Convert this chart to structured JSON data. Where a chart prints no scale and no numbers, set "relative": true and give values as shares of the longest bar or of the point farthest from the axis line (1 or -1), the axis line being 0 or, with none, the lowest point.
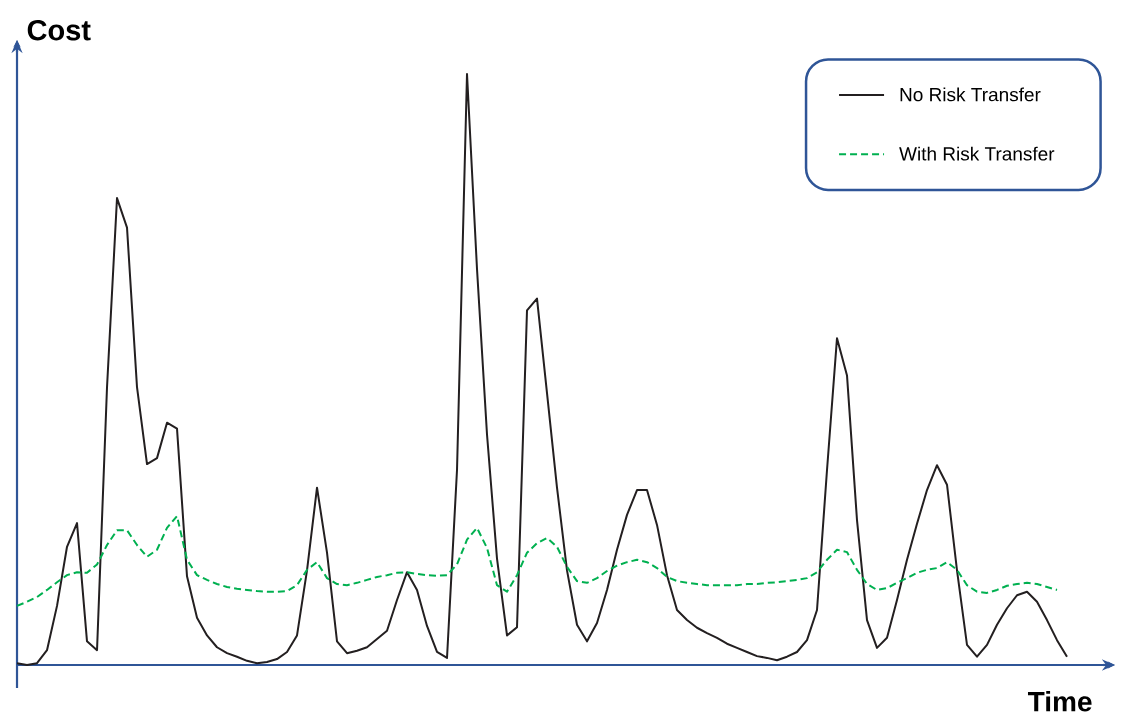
{
  "chart_data": {
    "type": "line",
    "relative": true,
    "xlabel": "Time",
    "ylabel": "Cost",
    "legend": "top right",
    "categories": [
      null,
      null,
      null,
      null,
      null,
      null,
      null,
      null,
      null,
      null,
      null,
      null,
      null,
      null,
      null,
      null,
      null,
      null,
      null,
      null,
      null,
      null,
      null,
      null,
      null,
      null,
      null,
      null,
      null,
      null,
      null,
      null,
      null,
      null,
      null,
      null,
      null,
      null,
      null,
      null,
      null,
      null,
      null,
      null,
      null,
      null,
      null,
      null,
      null,
      null,
      null,
      null,
      null,
      null,
      null,
      null,
      null,
      null,
      null,
      null,
      null,
      null,
      null,
      null,
      null,
      null,
      null,
      null,
      null,
      null,
      null,
      null,
      null,
      null,
      null,
      null,
      null,
      null,
      null,
      null,
      null,
      null,
      null,
      null,
      null,
      null,
      null,
      null,
      null,
      null,
      null,
      null,
      null,
      null,
      null,
      null,
      null,
      null,
      null,
      null,
      null,
      null,
      null,
      null,
      null,
      null
    ],
    "series": [
      {
        "name": "No Risk Transfer",
        "color": "#231f20",
        "line_style": "solid",
        "values": [
          0.003,
          0,
          0.003,
          0.025,
          0.1,
          0.2,
          0.24,
          0.04,
          0.025,
          0.47,
          0.79,
          0.74,
          0.47,
          0.34,
          0.35,
          0.41,
          0.4,
          0.15,
          0.08,
          0.05,
          0.03,
          0.02,
          0.014,
          0.007,
          0.003,
          0.005,
          0.01,
          0.022,
          0.05,
          0.16,
          0.3,
          0.19,
          0.04,
          0.02,
          0.024,
          0.03,
          0.044,
          0.058,
          0.11,
          0.157,
          0.127,
          0.066,
          0.022,
          0.012,
          0.33,
          1,
          0.67,
          0.39,
          0.18,
          0.05,
          0.064,
          0.6,
          0.62,
          0.46,
          0.3,
          0.16,
          0.068,
          0.04,
          0.071,
          0.127,
          0.195,
          0.254,
          0.296,
          0.296,
          0.237,
          0.152,
          0.093,
          0.076,
          0.063,
          0.054,
          0.046,
          0.036,
          0.029,
          0.022,
          0.015,
          0.012,
          0.008,
          0.014,
          0.022,
          0.042,
          0.093,
          0.33,
          0.553,
          0.49,
          0.245,
          0.076,
          0.029,
          0.046,
          0.11,
          0.178,
          0.239,
          0.296,
          0.338,
          0.305,
          0.16,
          0.034,
          0.014,
          0.034,
          0.068,
          0.096,
          0.118,
          0.124,
          0.107,
          0.076,
          0.042,
          0.014
        ]
      },
      {
        "name": "With Risk Transfer",
        "color": "#00b050",
        "line_style": "dashed",
        "values": [
          0.1,
          0.107,
          0.115,
          0.127,
          0.14,
          0.152,
          0.157,
          0.156,
          0.17,
          0.203,
          0.228,
          0.228,
          0.203,
          0.183,
          0.195,
          0.232,
          0.252,
          0.178,
          0.152,
          0.144,
          0.137,
          0.132,
          0.129,
          0.127,
          0.125,
          0.124,
          0.124,
          0.125,
          0.135,
          0.161,
          0.174,
          0.147,
          0.137,
          0.135,
          0.139,
          0.144,
          0.149,
          0.152,
          0.156,
          0.157,
          0.154,
          0.152,
          0.151,
          0.152,
          0.17,
          0.212,
          0.232,
          0.198,
          0.135,
          0.124,
          0.152,
          0.19,
          0.206,
          0.215,
          0.2,
          0.166,
          0.142,
          0.139,
          0.147,
          0.159,
          0.168,
          0.174,
          0.178,
          0.174,
          0.164,
          0.149,
          0.142,
          0.139,
          0.137,
          0.135,
          0.135,
          0.135,
          0.135,
          0.137,
          0.137,
          0.139,
          0.14,
          0.142,
          0.144,
          0.147,
          0.157,
          0.178,
          0.195,
          0.191,
          0.161,
          0.137,
          0.127,
          0.13,
          0.139,
          0.147,
          0.156,
          0.161,
          0.164,
          0.174,
          0.161,
          0.135,
          0.124,
          0.122,
          0.127,
          0.134,
          0.137,
          0.139,
          0.137,
          0.132,
          0.127,
          null
        ]
      }
    ]
  }
}
